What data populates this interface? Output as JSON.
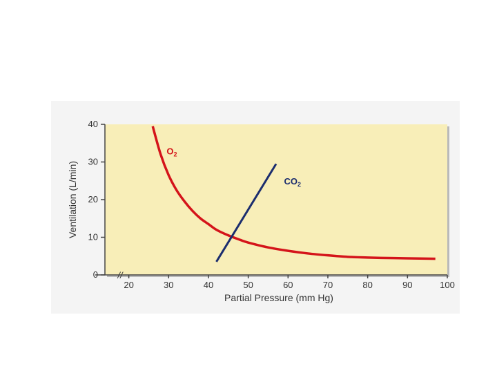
{
  "chart_data": {
    "type": "line",
    "xlabel": "Partial Pressure (mm Hg)",
    "ylabel": "Ventilation (L/min)",
    "xlim": [
      14,
      100
    ],
    "ylim": [
      0,
      40
    ],
    "x_break_symbol": "//",
    "x_ticks": [
      20,
      30,
      40,
      50,
      60,
      70,
      80,
      90,
      100
    ],
    "y_ticks": [
      0,
      10,
      20,
      30,
      40
    ],
    "x_tick_labels": [
      "20",
      "30",
      "40",
      "50",
      "60",
      "70",
      "80",
      "90",
      "100"
    ],
    "y_tick_labels": [
      "0",
      "10",
      "20",
      "30",
      "40"
    ],
    "plot_background": "#f8eeb8",
    "grid": false,
    "series": [
      {
        "name_main": "O",
        "name_sub": "2",
        "color": "#d4141a",
        "x": [
          26,
          28,
          30,
          32,
          34,
          36,
          38,
          40,
          42,
          45,
          48,
          50,
          55,
          60,
          65,
          70,
          75,
          80,
          85,
          90,
          97
        ],
        "y": [
          39.5,
          32,
          26.5,
          22.5,
          19.5,
          17,
          15,
          13.5,
          12,
          10.5,
          9.3,
          8.6,
          7.3,
          6.4,
          5.7,
          5.2,
          4.8,
          4.6,
          4.5,
          4.4,
          4.3
        ]
      },
      {
        "name_main": "CO",
        "name_sub": "2",
        "color": "#1b2d6e",
        "x": [
          42,
          57
        ],
        "y": [
          3.5,
          29.5
        ]
      }
    ]
  }
}
